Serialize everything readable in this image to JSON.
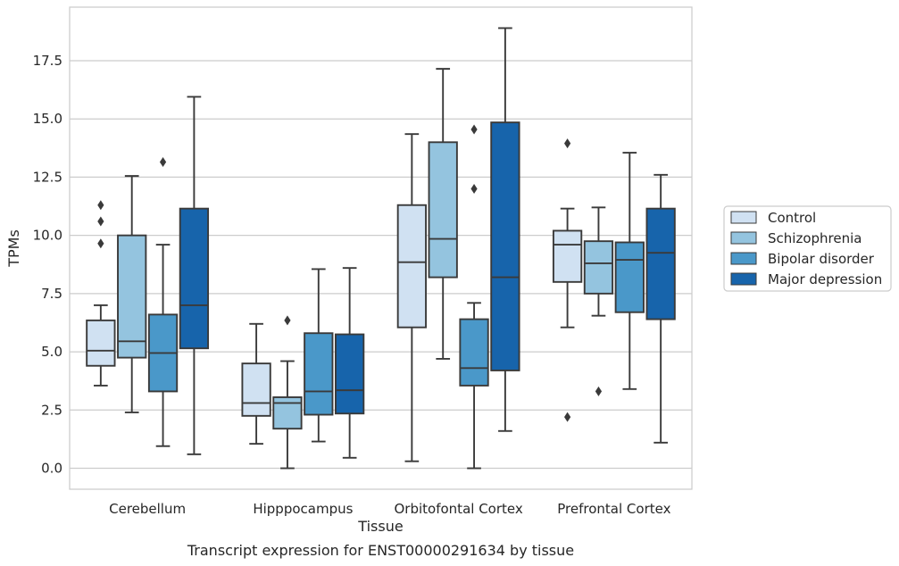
{
  "chart_data": {
    "type": "boxplot",
    "title": "Transcript expression for ENST00000291634 by tissue",
    "xlabel": "Tissue",
    "ylabel": "TPMs",
    "ylim": [
      -0.9,
      19.8
    ],
    "yticks": [
      0.0,
      2.5,
      5.0,
      7.5,
      10.0,
      12.5,
      15.0,
      17.5
    ],
    "ytick_labels": [
      "0.0",
      "2.5",
      "5.0",
      "7.5",
      "10.0",
      "12.5",
      "15.0",
      "17.5"
    ],
    "grid": true,
    "legend_position": "right",
    "categories": [
      "Cerebellum",
      "Hipppocampus",
      "Orbitofontal Cortex",
      "Prefrontal Cortex"
    ],
    "series": [
      {
        "name": "Control",
        "color": "#d0e1f2",
        "boxes": [
          {
            "whislo": 3.55,
            "q1": 4.4,
            "med": 5.05,
            "q3": 6.35,
            "whishi": 7.0,
            "fliers": [
              9.65,
              10.6,
              11.3
            ]
          },
          {
            "whislo": 1.05,
            "q1": 2.25,
            "med": 2.8,
            "q3": 4.5,
            "whishi": 6.2,
            "fliers": []
          },
          {
            "whislo": 0.3,
            "q1": 6.05,
            "med": 8.85,
            "q3": 11.3,
            "whishi": 14.35,
            "fliers": []
          },
          {
            "whislo": 6.05,
            "q1": 8.0,
            "med": 9.6,
            "q3": 10.2,
            "whishi": 11.15,
            "fliers": [
              2.2,
              13.95
            ]
          }
        ]
      },
      {
        "name": "Schizophrenia",
        "color": "#94c4df",
        "boxes": [
          {
            "whislo": 2.4,
            "q1": 4.75,
            "med": 5.45,
            "q3": 10.0,
            "whishi": 12.55,
            "fliers": []
          },
          {
            "whislo": 0.0,
            "q1": 1.7,
            "med": 2.8,
            "q3": 3.05,
            "whishi": 4.6,
            "fliers": [
              6.35
            ]
          },
          {
            "whislo": 4.7,
            "q1": 8.2,
            "med": 9.85,
            "q3": 14.0,
            "whishi": 17.15,
            "fliers": []
          },
          {
            "whislo": 6.55,
            "q1": 7.5,
            "med": 8.8,
            "q3": 9.75,
            "whishi": 11.2,
            "fliers": [
              3.3
            ]
          }
        ]
      },
      {
        "name": "Bipolar disorder",
        "color": "#4a98c9",
        "boxes": [
          {
            "whislo": 0.95,
            "q1": 3.3,
            "med": 4.95,
            "q3": 6.6,
            "whishi": 9.6,
            "fliers": [
              13.15
            ]
          },
          {
            "whislo": 1.15,
            "q1": 2.3,
            "med": 3.3,
            "q3": 5.8,
            "whishi": 8.55,
            "fliers": []
          },
          {
            "whislo": 0.0,
            "q1": 3.55,
            "med": 4.3,
            "q3": 6.4,
            "whishi": 7.1,
            "fliers": [
              12.0,
              14.55
            ]
          },
          {
            "whislo": 3.4,
            "q1": 6.7,
            "med": 8.95,
            "q3": 9.7,
            "whishi": 13.55,
            "fliers": []
          }
        ]
      },
      {
        "name": "Major depression",
        "color": "#1764ab",
        "boxes": [
          {
            "whislo": 0.6,
            "q1": 5.15,
            "med": 7.0,
            "q3": 11.15,
            "whishi": 15.95,
            "fliers": []
          },
          {
            "whislo": 0.45,
            "q1": 2.35,
            "med": 3.35,
            "q3": 5.75,
            "whishi": 8.6,
            "fliers": []
          },
          {
            "whislo": 1.6,
            "q1": 4.2,
            "med": 8.2,
            "q3": 14.85,
            "whishi": 18.9,
            "fliers": []
          },
          {
            "whislo": 1.1,
            "q1": 6.4,
            "med": 9.25,
            "q3": 11.15,
            "whishi": 12.6,
            "fliers": []
          }
        ]
      }
    ]
  }
}
